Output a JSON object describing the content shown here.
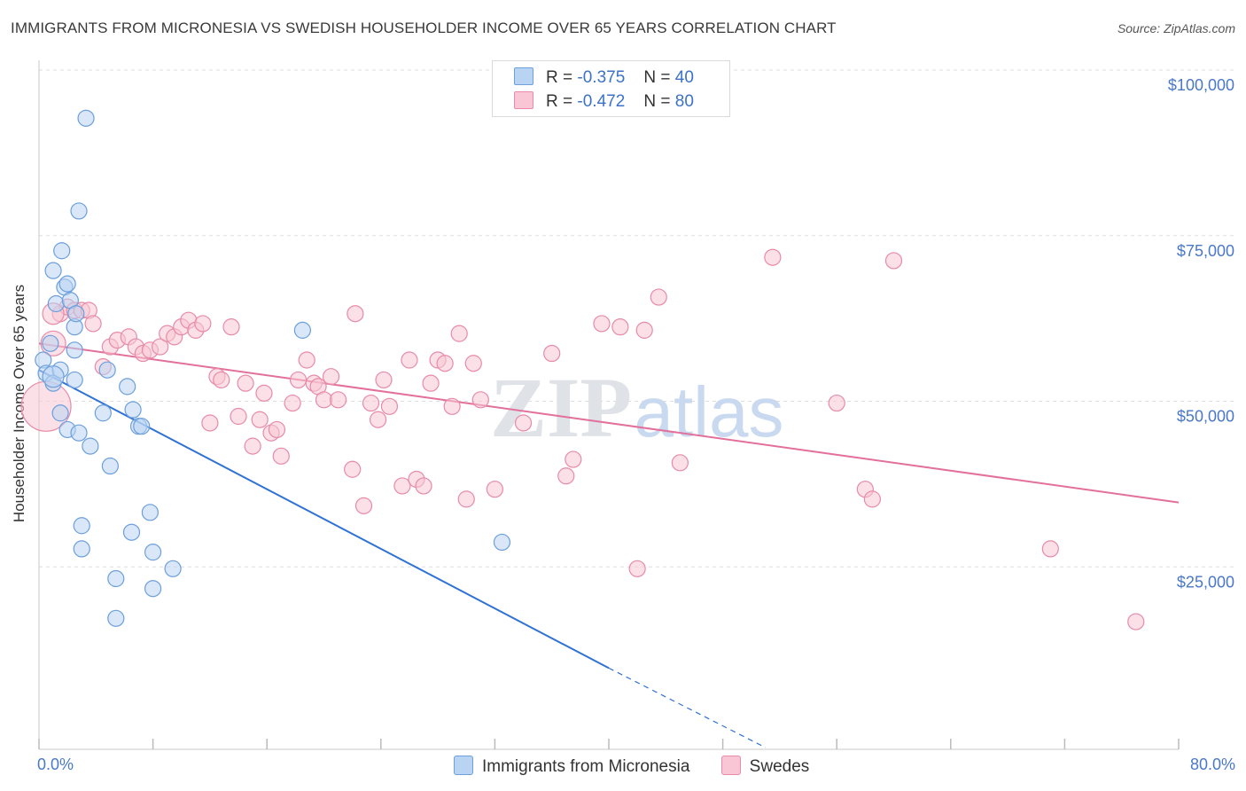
{
  "title": "IMMIGRANTS FROM MICRONESIA VS SWEDISH HOUSEHOLDER INCOME OVER 65 YEARS CORRELATION CHART",
  "source": "Source: ZipAtlas.com",
  "watermark": {
    "zip": "ZIP",
    "atlas": "atlas"
  },
  "legend": {
    "r_label": "R =",
    "n_label": "N =",
    "series1": {
      "r": "-0.375",
      "n": "40"
    },
    "series2": {
      "r": "-0.472",
      "n": "80"
    }
  },
  "colors": {
    "blue_fill": "#b9d3f3",
    "blue_stroke": "#6c9fdc",
    "blue_line": "#2f72d6",
    "pink_fill": "#f8c6d4",
    "pink_stroke": "#e88aa8",
    "pink_line": "#e2709a",
    "tick_label": "#4a78c8",
    "grid": "#dddddd"
  },
  "chart_data": {
    "type": "scatter",
    "title": "IMMIGRANTS FROM MICRONESIA VS SWEDISH HOUSEHOLDER INCOME OVER 65 YEARS CORRELATION CHART",
    "xlabel": "",
    "ylabel": "Householder Income Over 65 years",
    "x_tick_labels": {
      "min": "0.0%",
      "max": "80.0%"
    },
    "xlim": [
      0,
      80
    ],
    "ylim": [
      0,
      105000
    ],
    "y_ticks": [
      {
        "value": 25000,
        "label": "$25,000"
      },
      {
        "value": 50000,
        "label": "$50,000"
      },
      {
        "value": 75000,
        "label": "$75,000"
      },
      {
        "value": 100000,
        "label": "$100,000"
      }
    ],
    "series": [
      {
        "name": "Immigrants from Micronesia",
        "color": "blue",
        "points": [
          [
            0.3,
            58500
          ],
          [
            0.5,
            56500
          ],
          [
            0.8,
            61000
          ],
          [
            1.0,
            55000
          ],
          [
            1.2,
            67000
          ],
          [
            1.0,
            72000
          ],
          [
            1.5,
            57000
          ],
          [
            1.6,
            75000
          ],
          [
            1.8,
            69500
          ],
          [
            2.0,
            70000
          ],
          [
            2.2,
            67500
          ],
          [
            2.5,
            63500
          ],
          [
            2.6,
            65500
          ],
          [
            2.8,
            81000
          ],
          [
            1.5,
            50500
          ],
          [
            2.0,
            48000
          ],
          [
            2.5,
            55500
          ],
          [
            2.8,
            47500
          ],
          [
            3.3,
            95000
          ],
          [
            3.6,
            45500
          ],
          [
            4.5,
            50500
          ],
          [
            4.8,
            57000
          ],
          [
            5.0,
            42500
          ],
          [
            3.0,
            33500
          ],
          [
            3.0,
            30000
          ],
          [
            6.2,
            54500
          ],
          [
            6.6,
            51000
          ],
          [
            7.0,
            48500
          ],
          [
            7.2,
            48500
          ],
          [
            6.5,
            32500
          ],
          [
            7.8,
            35500
          ],
          [
            8.0,
            29500
          ],
          [
            9.4,
            27000
          ],
          [
            8.0,
            24000
          ],
          [
            5.4,
            25500
          ],
          [
            5.4,
            19500
          ],
          [
            18.5,
            63000
          ],
          [
            32.5,
            31000
          ],
          [
            2.5,
            60000
          ],
          [
            1.0,
            56000
          ]
        ],
        "radii": [
          9,
          9,
          9,
          9,
          9,
          9,
          9,
          9,
          9,
          9,
          9,
          9,
          9,
          9,
          9,
          9,
          9,
          9,
          9,
          9,
          9,
          9,
          9,
          9,
          9,
          9,
          9,
          9,
          9,
          9,
          9,
          9,
          9,
          9,
          9,
          9,
          9,
          9,
          9,
          12
        ],
        "trend": {
          "x0": 0,
          "y0": 57000,
          "x1": 40,
          "y1": 12000,
          "dash_to_x": 51,
          "dash_to_y": 0
        }
      },
      {
        "name": "Swedes",
        "color": "pink",
        "points": [
          [
            0.5,
            51500
          ],
          [
            1.0,
            61000
          ],
          [
            1.5,
            65500
          ],
          [
            2.0,
            66500
          ],
          [
            2.5,
            66000
          ],
          [
            3.0,
            66000
          ],
          [
            3.5,
            66000
          ],
          [
            3.8,
            64000
          ],
          [
            4.5,
            57500
          ],
          [
            5.0,
            60500
          ],
          [
            5.5,
            61500
          ],
          [
            6.3,
            62000
          ],
          [
            6.8,
            60500
          ],
          [
            7.3,
            59500
          ],
          [
            7.8,
            60000
          ],
          [
            8.5,
            60500
          ],
          [
            9.0,
            62500
          ],
          [
            9.5,
            62000
          ],
          [
            10.0,
            63500
          ],
          [
            10.5,
            64500
          ],
          [
            11.0,
            63000
          ],
          [
            11.5,
            64000
          ],
          [
            12.0,
            49000
          ],
          [
            12.5,
            56000
          ],
          [
            12.8,
            55500
          ],
          [
            13.5,
            63500
          ],
          [
            14.0,
            50000
          ],
          [
            14.5,
            55000
          ],
          [
            15.0,
            45500
          ],
          [
            15.5,
            49500
          ],
          [
            15.8,
            53500
          ],
          [
            16.3,
            47500
          ],
          [
            16.7,
            48000
          ],
          [
            17.0,
            44000
          ],
          [
            17.8,
            52000
          ],
          [
            18.2,
            55500
          ],
          [
            18.8,
            58500
          ],
          [
            19.3,
            55000
          ],
          [
            19.6,
            54500
          ],
          [
            20.0,
            52500
          ],
          [
            20.5,
            56000
          ],
          [
            21.0,
            52500
          ],
          [
            22.0,
            42000
          ],
          [
            22.2,
            65500
          ],
          [
            22.8,
            36500
          ],
          [
            23.3,
            52000
          ],
          [
            23.8,
            49500
          ],
          [
            24.2,
            55500
          ],
          [
            24.6,
            51500
          ],
          [
            25.5,
            39500
          ],
          [
            26.0,
            58500
          ],
          [
            26.5,
            40500
          ],
          [
            27.0,
            39500
          ],
          [
            27.5,
            55000
          ],
          [
            28.0,
            58500
          ],
          [
            28.5,
            58000
          ],
          [
            29.0,
            51500
          ],
          [
            29.5,
            62500
          ],
          [
            30.0,
            37500
          ],
          [
            30.5,
            58000
          ],
          [
            31.0,
            52500
          ],
          [
            32.0,
            39000
          ],
          [
            34.0,
            49000
          ],
          [
            36.0,
            59500
          ],
          [
            37.0,
            41000
          ],
          [
            37.5,
            43500
          ],
          [
            39.5,
            64000
          ],
          [
            40.8,
            63500
          ],
          [
            42.0,
            27000
          ],
          [
            42.5,
            63000
          ],
          [
            43.5,
            68000
          ],
          [
            45.0,
            43000
          ],
          [
            51.5,
            74000
          ],
          [
            56.0,
            52000
          ],
          [
            58.0,
            39000
          ],
          [
            58.5,
            37500
          ],
          [
            60.0,
            73500
          ],
          [
            71.0,
            30000
          ],
          [
            77.0,
            19000
          ],
          [
            1.0,
            65500
          ]
        ],
        "radii": [
          28,
          14,
          9,
          9,
          9,
          9,
          9,
          9,
          9,
          9,
          9,
          9,
          9,
          9,
          9,
          9,
          9,
          9,
          9,
          9,
          9,
          9,
          9,
          9,
          9,
          9,
          9,
          9,
          9,
          9,
          9,
          9,
          9,
          9,
          9,
          9,
          9,
          9,
          9,
          9,
          9,
          9,
          9,
          9,
          9,
          9,
          9,
          9,
          9,
          9,
          9,
          9,
          9,
          9,
          9,
          9,
          9,
          9,
          9,
          9,
          9,
          9,
          9,
          9,
          9,
          9,
          9,
          9,
          9,
          9,
          9,
          9,
          9,
          9,
          9,
          9,
          9,
          9,
          9,
          12
        ],
        "trend": {
          "x0": 0,
          "y0": 61000,
          "x1": 80,
          "y1": 37000
        }
      }
    ]
  }
}
